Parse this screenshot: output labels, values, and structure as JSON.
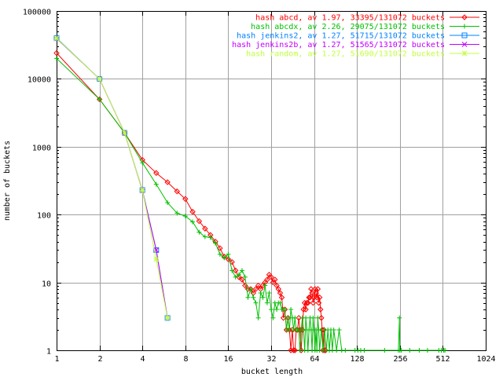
{
  "chart_data": {
    "type": "line",
    "title": "",
    "xlabel": "bucket length",
    "ylabel": "number of buckets",
    "x_scale": "log2",
    "y_scale": "log10",
    "xlim": [
      1,
      1024
    ],
    "ylim": [
      1,
      100000
    ],
    "x_ticks": [
      1,
      2,
      4,
      8,
      16,
      32,
      64,
      128,
      256,
      512,
      1024
    ],
    "x_tick_labels": [
      "1",
      "2",
      "4",
      "8",
      "16",
      "32",
      "64",
      "128",
      "256",
      "512",
      "1024"
    ],
    "y_ticks": [
      1,
      10,
      100,
      1000,
      10000,
      100000
    ],
    "y_tick_labels": [
      "1",
      "10",
      "100",
      "1000",
      "10000",
      "100000"
    ],
    "grid": true,
    "legend": "top-right",
    "series": [
      {
        "name": "hash abcd, av 1.97, 33395/131072 buckets",
        "color": "#ff0000",
        "marker": "diamond",
        "points": [
          [
            1,
            24000
          ],
          [
            2,
            5000
          ],
          [
            3,
            1600
          ],
          [
            4,
            640
          ],
          [
            5,
            410
          ],
          [
            6,
            300
          ],
          [
            7,
            220
          ],
          [
            8,
            170
          ],
          [
            9,
            110
          ],
          [
            10,
            80
          ],
          [
            11,
            62
          ],
          [
            12,
            50
          ],
          [
            13,
            40
          ],
          [
            14,
            32
          ],
          [
            15,
            24
          ],
          [
            16,
            22
          ],
          [
            17,
            20
          ],
          [
            18,
            15
          ],
          [
            19,
            12
          ],
          [
            20,
            11
          ],
          [
            21,
            9
          ],
          [
            22,
            8
          ],
          [
            23,
            8
          ],
          [
            24,
            7
          ],
          [
            25,
            8
          ],
          [
            26,
            9
          ],
          [
            27,
            8
          ],
          [
            28,
            9
          ],
          [
            29,
            10
          ],
          [
            30,
            11
          ],
          [
            31,
            13
          ],
          [
            32,
            12
          ],
          [
            33,
            10
          ],
          [
            34,
            11
          ],
          [
            35,
            9
          ],
          [
            36,
            8
          ],
          [
            37,
            7
          ],
          [
            38,
            6
          ],
          [
            39,
            3
          ],
          [
            40,
            4
          ],
          [
            41,
            2
          ],
          [
            42,
            3
          ],
          [
            43,
            2
          ],
          [
            44,
            1
          ],
          [
            45,
            2
          ],
          [
            46,
            1
          ],
          [
            47,
            1
          ],
          [
            48,
            2
          ],
          [
            49,
            2
          ],
          [
            50,
            3
          ],
          [
            51,
            2
          ],
          [
            52,
            1
          ],
          [
            53,
            2
          ],
          [
            54,
            4
          ],
          [
            55,
            5
          ],
          [
            56,
            4
          ],
          [
            57,
            5
          ],
          [
            58,
            5
          ],
          [
            59,
            6
          ],
          [
            60,
            6
          ],
          [
            61,
            8
          ],
          [
            62,
            7
          ],
          [
            63,
            5
          ],
          [
            64,
            6
          ],
          [
            65,
            8
          ],
          [
            66,
            7
          ],
          [
            67,
            6
          ],
          [
            68,
            8
          ],
          [
            69,
            5
          ],
          [
            70,
            6
          ],
          [
            71,
            4
          ],
          [
            72,
            3
          ],
          [
            73,
            2
          ],
          [
            74,
            1
          ],
          [
            75,
            2
          ],
          [
            76,
            1
          ],
          [
            77,
            1
          ]
        ]
      },
      {
        "name": "hash abcdx, av 2.26, 29075/131072 buckets",
        "color": "#00c000",
        "marker": "plus",
        "points": [
          [
            1,
            20000
          ],
          [
            2,
            5000
          ],
          [
            3,
            1600
          ],
          [
            4,
            580
          ],
          [
            5,
            280
          ],
          [
            6,
            150
          ],
          [
            7,
            105
          ],
          [
            8,
            95
          ],
          [
            9,
            78
          ],
          [
            10,
            55
          ],
          [
            11,
            47
          ],
          [
            12,
            46
          ],
          [
            13,
            38
          ],
          [
            14,
            26
          ],
          [
            15,
            23
          ],
          [
            16,
            26
          ],
          [
            17,
            15
          ],
          [
            18,
            12
          ],
          [
            19,
            13
          ],
          [
            20,
            15
          ],
          [
            21,
            12
          ],
          [
            22,
            6
          ],
          [
            23,
            8
          ],
          [
            24,
            6
          ],
          [
            25,
            5
          ],
          [
            26,
            3
          ],
          [
            27,
            7
          ],
          [
            28,
            6
          ],
          [
            29,
            9
          ],
          [
            30,
            5
          ],
          [
            31,
            7
          ],
          [
            32,
            4
          ],
          [
            33,
            3
          ],
          [
            34,
            5
          ],
          [
            35,
            4
          ],
          [
            36,
            5
          ],
          [
            37,
            5
          ],
          [
            38,
            4
          ],
          [
            39,
            4
          ],
          [
            40,
            4
          ],
          [
            41,
            2
          ],
          [
            42,
            3
          ],
          [
            43,
            2
          ],
          [
            44,
            4
          ],
          [
            45,
            3
          ],
          [
            46,
            2
          ],
          [
            47,
            3
          ],
          [
            48,
            2
          ],
          [
            49,
            2
          ],
          [
            50,
            2
          ],
          [
            51,
            1
          ],
          [
            52,
            2
          ],
          [
            53,
            3
          ],
          [
            54,
            2
          ],
          [
            55,
            1
          ],
          [
            56,
            3
          ],
          [
            57,
            2
          ],
          [
            58,
            1
          ],
          [
            59,
            2
          ],
          [
            60,
            3
          ],
          [
            61,
            2
          ],
          [
            62,
            1
          ],
          [
            63,
            3
          ],
          [
            64,
            2
          ],
          [
            65,
            1
          ],
          [
            66,
            2
          ],
          [
            67,
            1
          ],
          [
            68,
            3
          ],
          [
            69,
            2
          ],
          [
            70,
            1
          ],
          [
            72,
            2
          ],
          [
            74,
            1
          ],
          [
            76,
            2
          ],
          [
            78,
            1
          ],
          [
            80,
            2
          ],
          [
            82,
            1
          ],
          [
            84,
            2
          ],
          [
            86,
            1
          ],
          [
            88,
            2
          ],
          [
            92,
            1
          ],
          [
            96,
            2
          ],
          [
            100,
            1
          ],
          [
            106,
            1
          ],
          [
            124,
            1
          ],
          [
            130,
            1
          ],
          [
            136,
            1
          ],
          [
            144,
            1
          ],
          [
            200,
            1
          ],
          [
            250,
            1
          ],
          [
            254,
            3
          ],
          [
            256,
            1
          ],
          [
            262,
            1
          ],
          [
            300,
            1
          ],
          [
            350,
            1
          ],
          [
            400,
            1
          ],
          [
            480,
            1
          ],
          [
            500,
            1
          ],
          [
            520,
            1
          ],
          [
            530,
            1
          ]
        ]
      },
      {
        "name": "hash jenkins2, av 1.27, 51715/131072 buckets",
        "color": "#0080ff",
        "marker": "square",
        "points": [
          [
            1,
            40000
          ],
          [
            2,
            10000
          ],
          [
            3,
            1600
          ],
          [
            4,
            230
          ],
          [
            5,
            30
          ],
          [
            6,
            3
          ]
        ]
      },
      {
        "name": "hash jenkins2b, av 1.27, 51565/131072 buckets",
        "color": "#c000ff",
        "marker": "x",
        "points": [
          [
            1,
            39000
          ],
          [
            2,
            10000
          ],
          [
            3,
            1600
          ],
          [
            4,
            225
          ],
          [
            5,
            30
          ],
          [
            6,
            3
          ]
        ]
      },
      {
        "name": "hash random, av 1.27, 51690/131072 buckets",
        "color": "#c0ff40",
        "marker": "star",
        "points": [
          [
            1,
            39500
          ],
          [
            2,
            10000
          ],
          [
            3,
            1600
          ],
          [
            4,
            228
          ],
          [
            5,
            22
          ],
          [
            6,
            3
          ]
        ]
      }
    ]
  }
}
